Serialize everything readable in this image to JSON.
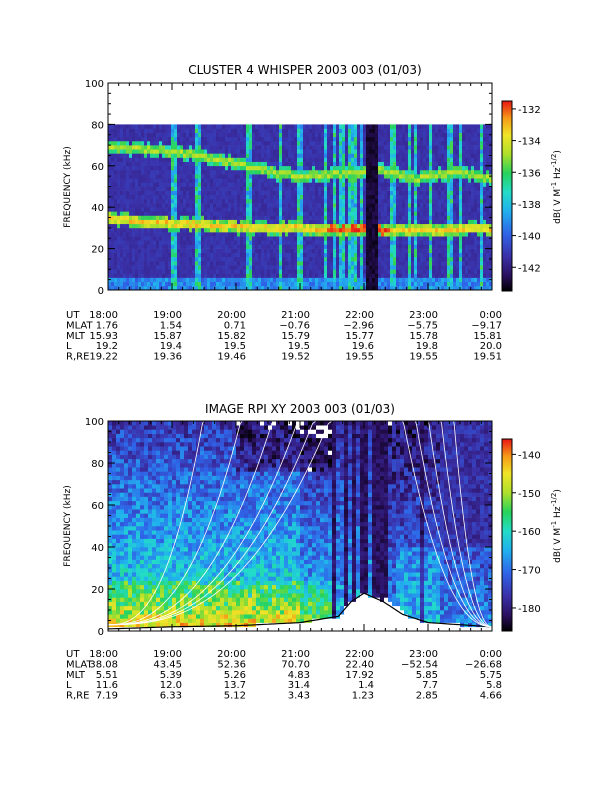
{
  "chart_data": [
    {
      "type": "heatmap",
      "title": "CLUSTER 4 WHISPER 2003 003 (01/03)",
      "ylabel": "FREQUENCY (kHz)",
      "ylim": [
        0,
        100
      ],
      "y_ticks": [
        "0",
        "20",
        "40",
        "60",
        "80",
        "100"
      ],
      "data_ylim": [
        0,
        80
      ],
      "colorbar": {
        "label": "dB( V M⁻¹ Hz⁻¹ᐟ²)",
        "label_main": "dB( V M",
        "label_exp1": "-1",
        "label_mid": " Hz",
        "label_exp2": "-1/2",
        "label_end": ")",
        "range": [
          -143.5,
          -131.5
        ],
        "ticks": [
          "-132",
          "-134",
          "-136",
          "-138",
          "-140",
          "-142"
        ]
      },
      "eph_labels": [
        "UT",
        "MLAT",
        "MLT",
        "L",
        "R,RE"
      ],
      "x_ticks": [
        "18:00",
        "19:00",
        "20:00",
        "21:00",
        "22:00",
        "23:00",
        "0:00"
      ],
      "ephemeris": {
        "MLAT": [
          "1.76",
          "1.54",
          "0.71",
          "−0.76",
          "−2.96",
          "−5.75",
          "−9.17"
        ],
        "MLT": [
          "15.93",
          "15.87",
          "15.82",
          "15.79",
          "15.77",
          "15.78",
          "15.81"
        ],
        "L": [
          "19.2",
          "19.4",
          "19.5",
          "19.5",
          "19.6",
          "19.8",
          "20.0"
        ],
        "R,RE": [
          "19.22",
          "19.36",
          "19.46",
          "19.52",
          "19.55",
          "19.55",
          "19.51"
        ]
      },
      "features": {
        "upper_band_khz": [
          69,
          68,
          66,
          63,
          58,
          55,
          56,
          58,
          54,
          57,
          54
        ],
        "lower_band_khz": [
          35,
          33,
          32,
          31,
          30,
          30,
          29,
          29,
          29,
          29,
          30
        ],
        "gap_ut_hours": [
          22.05,
          22.2
        ]
      }
    },
    {
      "type": "heatmap",
      "title": "IMAGE RPI XY 2003 003 (01/03)",
      "ylabel": "FREQUENCY (kHz)",
      "ylim": [
        0,
        100
      ],
      "y_ticks": [
        "0",
        "20",
        "40",
        "60",
        "80",
        "100"
      ],
      "colorbar": {
        "label_main": "dB( V M",
        "label_exp1": "-1",
        "label_mid": " Hz",
        "label_exp2": "-1/2",
        "label_end": ")",
        "range": [
          -186,
          -136
        ],
        "ticks": [
          "-140",
          "-150",
          "-160",
          "-170",
          "-180"
        ]
      },
      "eph_labels": [
        "UT",
        "MLAT",
        "MLT",
        "L",
        "R,RE"
      ],
      "x_ticks": [
        "18:00",
        "19:00",
        "20:00",
        "21:00",
        "22:00",
        "23:00",
        "0:00"
      ],
      "ephemeris": {
        "MLAT": [
          "38.08",
          "43.45",
          "52.36",
          "70.70",
          "22.40",
          "−52.54",
          "−26.68"
        ],
        "MLT": [
          "5.51",
          "5.39",
          "5.26",
          "4.83",
          "17.92",
          "5.85",
          "5.75"
        ],
        "L": [
          "11.6",
          "12.0",
          "13.7",
          "31.4",
          "1.4",
          "7.7",
          "5.8"
        ],
        "R,RE": [
          "7.19",
          "6.33",
          "5.12",
          "3.43",
          "1.23",
          "2.85",
          "4.66"
        ]
      },
      "features": {
        "plasma_freq_ut": [
          18.0,
          19.0,
          20.0,
          21.0,
          21.6,
          21.8,
          22.0,
          22.3,
          22.6,
          23.0,
          24.0
        ],
        "plasma_freq_khz": [
          1,
          2,
          2.5,
          4,
          7,
          14,
          18,
          14,
          8,
          4,
          2
        ],
        "gap_ut_hours": [
          22.3,
          22.65
        ]
      }
    }
  ],
  "colors": {
    "background": "#ffffff",
    "axis": "#000000",
    "curve": "#ffffff"
  }
}
